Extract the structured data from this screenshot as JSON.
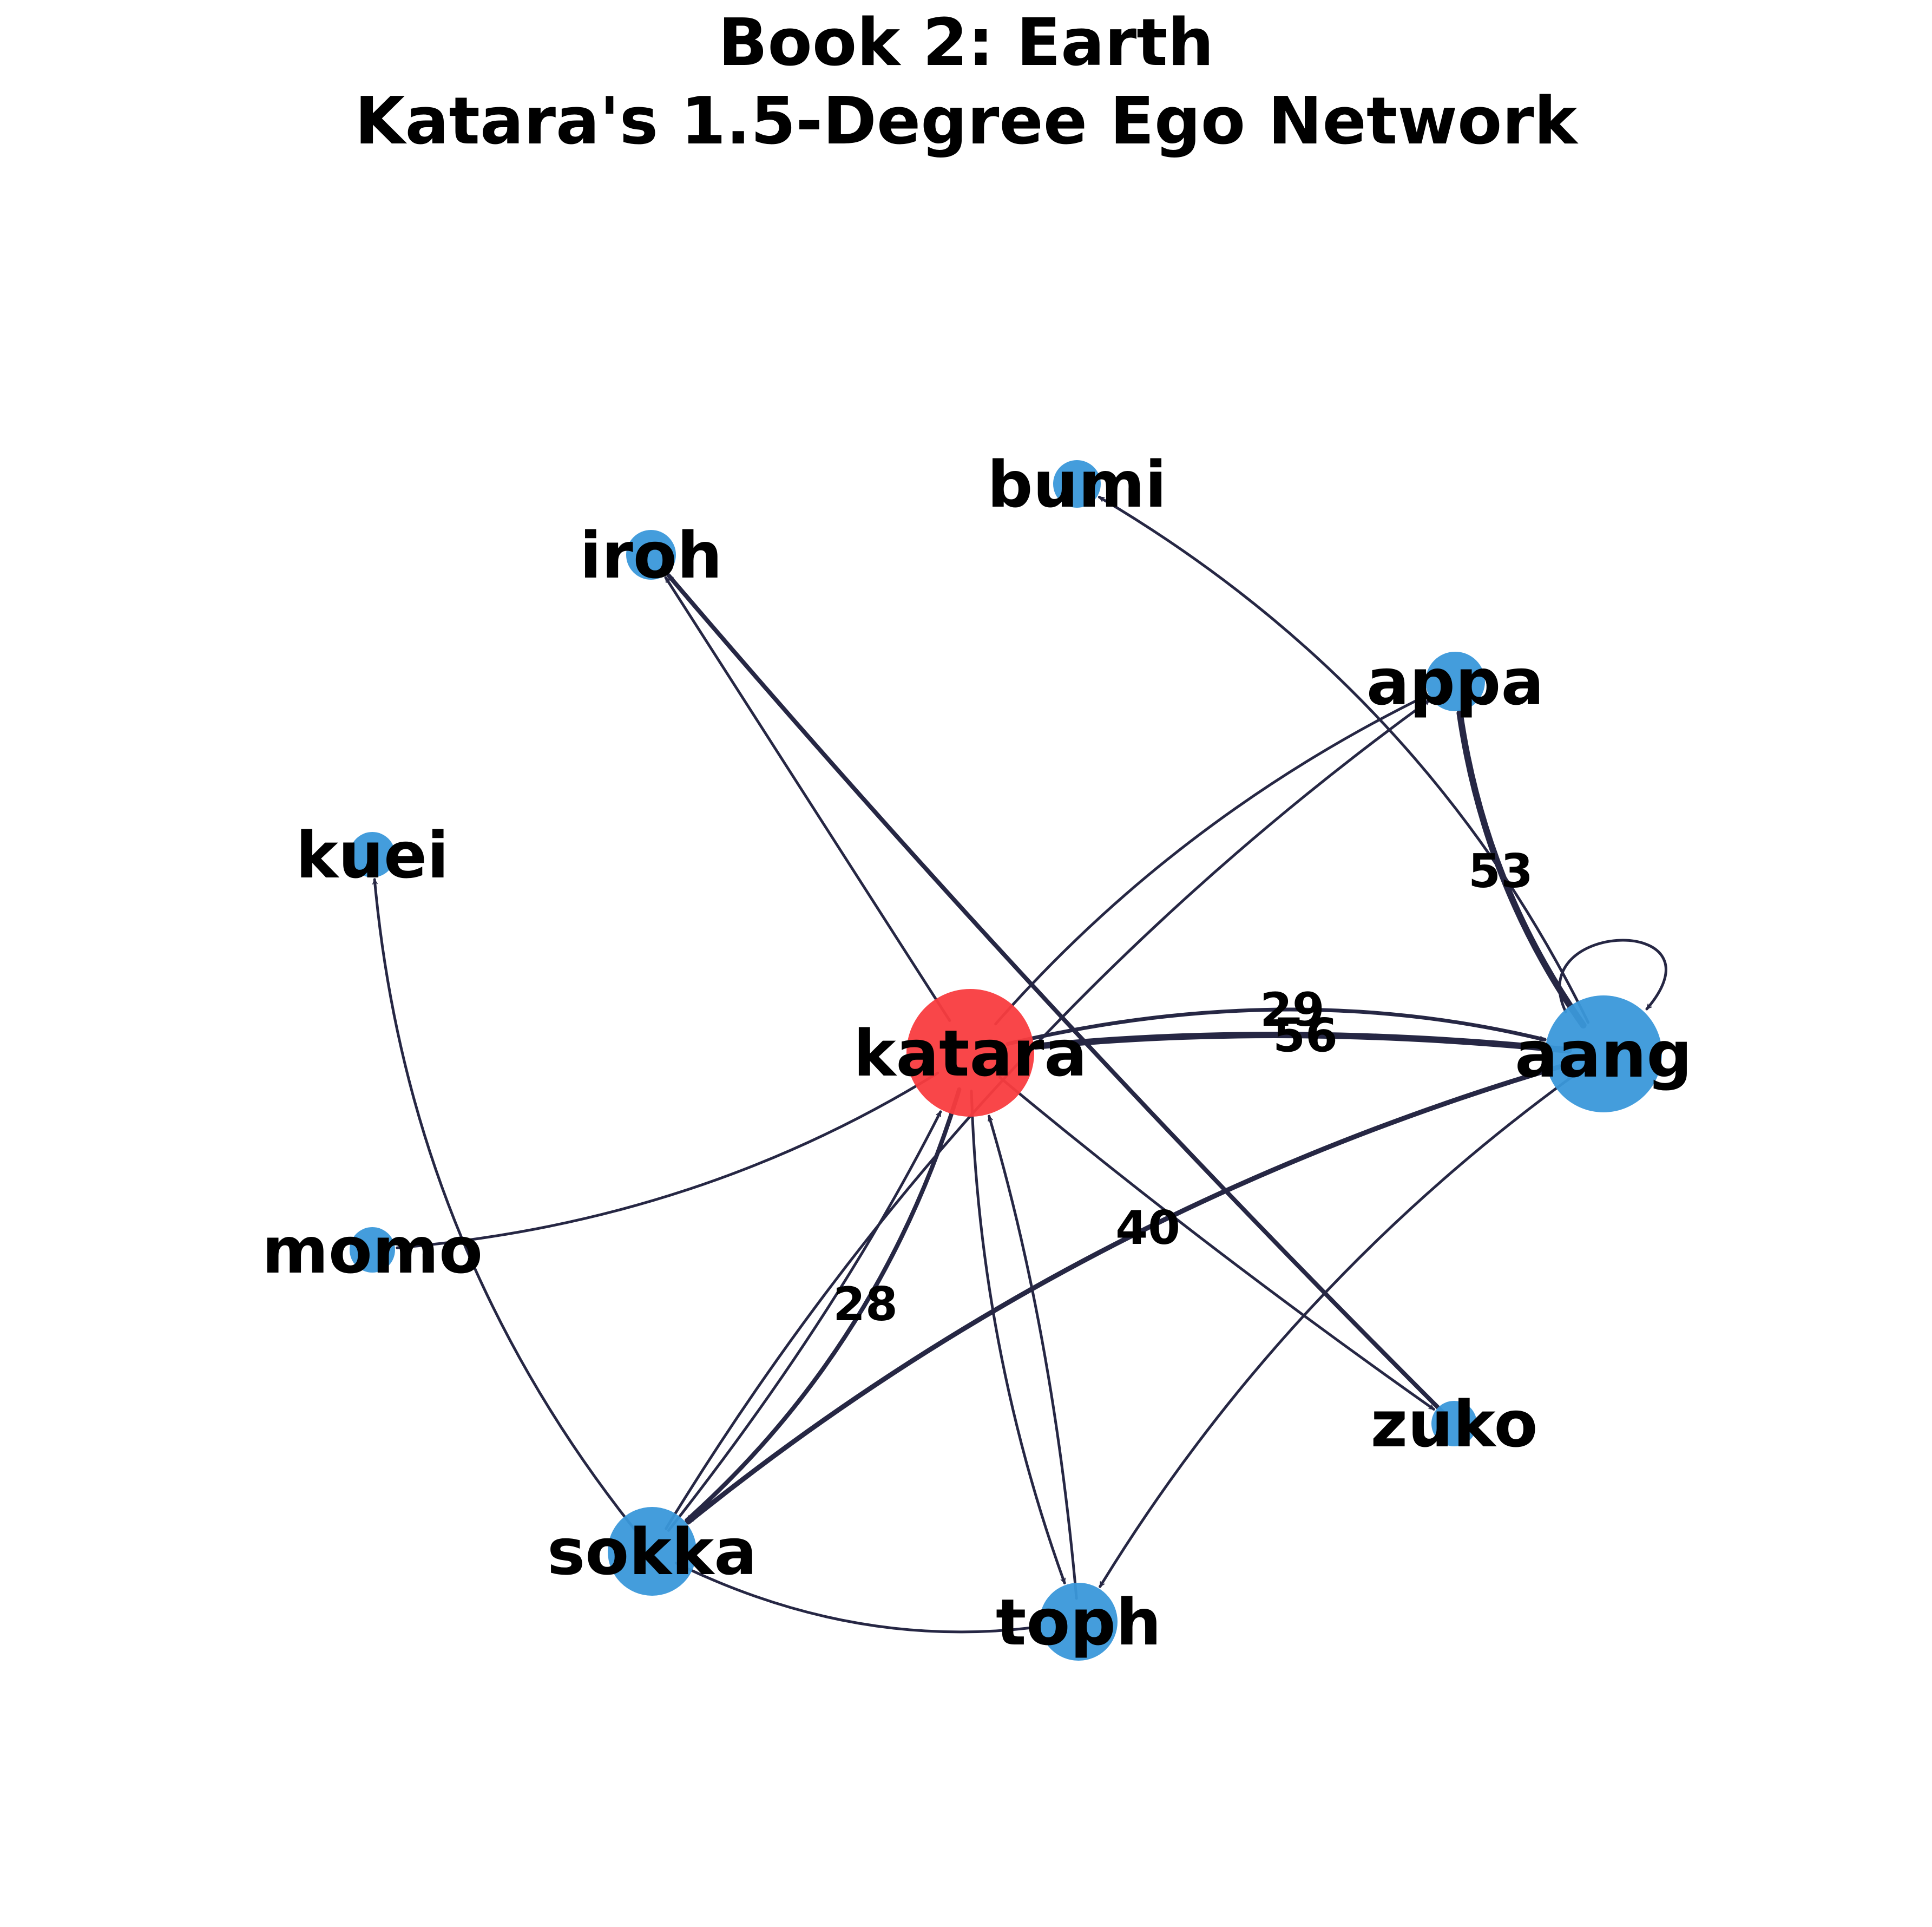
{
  "title_lines": [
    "Book 2: Earth",
    "Katara's 1.5-Degree Ego Network"
  ],
  "colors": {
    "ego_node": "#f93c3f",
    "other_node": "#3a98da",
    "edge": "#262744",
    "text": "#000000",
    "background": "#ffffff"
  },
  "graph": {
    "ego": "katara",
    "nodes": [
      {
        "id": "katara",
        "label": "katara",
        "role": "ego"
      },
      {
        "id": "aang",
        "label": "aang",
        "role": "alter"
      },
      {
        "id": "appa",
        "label": "appa",
        "role": "alter"
      },
      {
        "id": "bumi",
        "label": "bumi",
        "role": "alter"
      },
      {
        "id": "iroh",
        "label": "iroh",
        "role": "alter"
      },
      {
        "id": "kuei",
        "label": "kuei",
        "role": "alter"
      },
      {
        "id": "momo",
        "label": "momo",
        "role": "alter"
      },
      {
        "id": "sokka",
        "label": "sokka",
        "role": "alter"
      },
      {
        "id": "toph",
        "label": "toph",
        "role": "alter"
      },
      {
        "id": "zuko",
        "label": "zuko",
        "role": "alter"
      }
    ],
    "edges": [
      {
        "source": "katara",
        "target": "aang",
        "label": "29"
      },
      {
        "source": "aang",
        "target": "katara",
        "label": "56"
      },
      {
        "source": "aang",
        "target": "appa",
        "label": "53"
      },
      {
        "source": "katara",
        "target": "sokka",
        "label": "28"
      },
      {
        "source": "aang",
        "target": "sokka",
        "label": "40"
      },
      {
        "source": "aang",
        "target": "aang",
        "label": ""
      },
      {
        "source": "katara",
        "target": "appa",
        "label": ""
      },
      {
        "source": "katara",
        "target": "toph",
        "label": ""
      },
      {
        "source": "katara",
        "target": "momo",
        "label": ""
      },
      {
        "source": "katara",
        "target": "zuko",
        "label": ""
      },
      {
        "source": "aang",
        "target": "bumi",
        "label": ""
      },
      {
        "source": "aang",
        "target": "toph",
        "label": ""
      },
      {
        "source": "sokka",
        "target": "appa",
        "label": ""
      },
      {
        "source": "sokka",
        "target": "katara",
        "label": ""
      },
      {
        "source": "sokka",
        "target": "toph",
        "label": ""
      },
      {
        "source": "sokka",
        "target": "kuei",
        "label": ""
      },
      {
        "source": "toph",
        "target": "katara",
        "label": ""
      },
      {
        "source": "zuko",
        "target": "iroh",
        "label": ""
      },
      {
        "source": "katara",
        "target": "iroh",
        "label": ""
      }
    ]
  }
}
